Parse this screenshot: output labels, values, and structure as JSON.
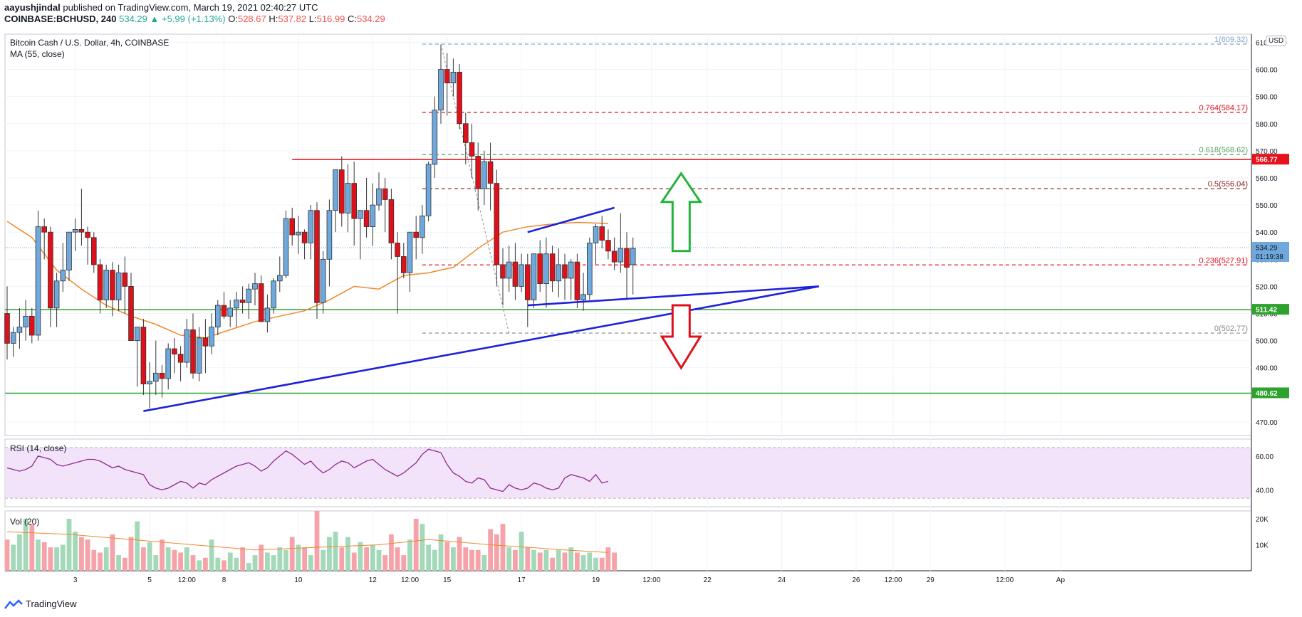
{
  "header": {
    "author": "aayushjindal",
    "published": "published on TradingView.com, March 19, 2021 02:40:27 UTC",
    "symbol_line": "COINBASE:BCHUSD, 240",
    "last": "534.29",
    "change": "▲ +5.99 (+1.13%)",
    "o_label": "O:",
    "o": "528.67",
    "h_label": "H:",
    "h": "537.82",
    "l_label": "L:",
    "l": "516.99",
    "c_label": "C:",
    "c": "534.29"
  },
  "legend": {
    "title": "Bitcoin Cash / U.S. Dollar, 4h, COINBASE",
    "ma": "MA (55, close)",
    "rsi": "RSI (14, close)",
    "vol": "Vol (20)"
  },
  "currency_badge": "USD",
  "footer": {
    "brand": "TradingView",
    "logo_icon": "tradingview-logo-icon"
  },
  "colors": {
    "up": "#6fa8dc",
    "down": "#e0101a",
    "ma": "#f0892c",
    "trendline": "#1e21d8",
    "support": "#2da22d",
    "resistance": "#e8101a",
    "rsi_line": "#8e2c8e",
    "rsi_bg": "#f3e3fa",
    "vol_up": "#a3d9b8",
    "vol_down": "#f5a3a9",
    "vol_ma": "#f0892c"
  },
  "chart_data": {
    "type": "candlestick",
    "title": "Bitcoin Cash / U.S. Dollar, 4h, COINBASE",
    "ylim": [
      465,
      613
    ],
    "price_axis": {
      "ticks": [
        470,
        480,
        490,
        500,
        510,
        520,
        530,
        540,
        550,
        560,
        570,
        580,
        590,
        600,
        610
      ],
      "tick_labels": [
        "470.00",
        "480.00",
        "490.00",
        "500.00",
        "510.00",
        "520.00",
        "530.00",
        "540.00",
        "550.00",
        "560.00",
        "570.00",
        "580.00",
        "590.00",
        "600.00",
        "610.00"
      ]
    },
    "time_axis": {
      "labels": [
        "3",
        "5",
        "12:00",
        "8",
        "10",
        "12",
        "12:00",
        "15",
        "17",
        "19",
        "12:00",
        "22",
        "24",
        "26",
        "12:00",
        "29",
        "12:00",
        "Ap"
      ],
      "label_index": [
        11,
        23,
        29,
        35,
        47,
        59,
        65,
        71,
        83,
        95,
        104,
        113,
        125,
        137,
        143,
        149,
        161,
        170
      ]
    },
    "candles_ohlc": [
      [
        510,
        520,
        493,
        499
      ],
      [
        499,
        505,
        494,
        503
      ],
      [
        503,
        512,
        497,
        505
      ],
      [
        505,
        515,
        500,
        509
      ],
      [
        509,
        512,
        499,
        502
      ],
      [
        502,
        548,
        500,
        542
      ],
      [
        542,
        545,
        530,
        540
      ],
      [
        540,
        542,
        505,
        512
      ],
      [
        512,
        525,
        505,
        522
      ],
      [
        522,
        536,
        518,
        526
      ],
      [
        526,
        540,
        522,
        540
      ],
      [
        540,
        545,
        533,
        541
      ],
      [
        541,
        556,
        535,
        540
      ],
      [
        540,
        542,
        528,
        538
      ],
      [
        538,
        540,
        525,
        528
      ],
      [
        528,
        530,
        510,
        515
      ],
      [
        515,
        528,
        512,
        526
      ],
      [
        526,
        529,
        509,
        515
      ],
      [
        515,
        528,
        511,
        525
      ],
      [
        525,
        531,
        510,
        520
      ],
      [
        520,
        525,
        505,
        500
      ],
      [
        500,
        503,
        483,
        505
      ],
      [
        505,
        508,
        480,
        484
      ],
      [
        484,
        492,
        475,
        485
      ],
      [
        485,
        500,
        480,
        488
      ],
      [
        488,
        491,
        479,
        486
      ],
      [
        486,
        499,
        482,
        497
      ],
      [
        497,
        501,
        488,
        495
      ],
      [
        495,
        498,
        485,
        492
      ],
      [
        492,
        508,
        490,
        504
      ],
      [
        504,
        510,
        486,
        488
      ],
      [
        488,
        505,
        485,
        501
      ],
      [
        501,
        508,
        488,
        498
      ],
      [
        498,
        510,
        495,
        505
      ],
      [
        505,
        515,
        502,
        513
      ],
      [
        513,
        518,
        508,
        509
      ],
      [
        509,
        515,
        505,
        512
      ],
      [
        512,
        518,
        505,
        515
      ],
      [
        515,
        520,
        510,
        514
      ],
      [
        514,
        521,
        508,
        519
      ],
      [
        519,
        525,
        513,
        521
      ],
      [
        521,
        524,
        510,
        507
      ],
      [
        507,
        517,
        503,
        512
      ],
      [
        512,
        523,
        510,
        522
      ],
      [
        522,
        531,
        518,
        524
      ],
      [
        524,
        548,
        523,
        545
      ],
      [
        545,
        549,
        535,
        539
      ],
      [
        539,
        546,
        532,
        540
      ],
      [
        540,
        541,
        530,
        536
      ],
      [
        536,
        550,
        530,
        548
      ],
      [
        548,
        551,
        508,
        514
      ],
      [
        514,
        533,
        510,
        530
      ],
      [
        530,
        552,
        520,
        548
      ],
      [
        548,
        558,
        540,
        563
      ],
      [
        563,
        568,
        542,
        547
      ],
      [
        547,
        565,
        540,
        558
      ],
      [
        558,
        566,
        535,
        545
      ],
      [
        545,
        548,
        530,
        548
      ],
      [
        548,
        560,
        538,
        542
      ],
      [
        542,
        558,
        535,
        550
      ],
      [
        550,
        562,
        548,
        556
      ],
      [
        556,
        560,
        540,
        552
      ],
      [
        552,
        556,
        530,
        536
      ],
      [
        536,
        540,
        510,
        531
      ],
      [
        531,
        536,
        523,
        525
      ],
      [
        525,
        540,
        518,
        540
      ],
      [
        540,
        546,
        530,
        538
      ],
      [
        538,
        550,
        532,
        546
      ],
      [
        546,
        566,
        544,
        565
      ],
      [
        565,
        590,
        560,
        585
      ],
      [
        585,
        609,
        580,
        600
      ],
      [
        600,
        606,
        583,
        595
      ],
      [
        595,
        604,
        590,
        599
      ],
      [
        599,
        602,
        578,
        580
      ],
      [
        580,
        584,
        565,
        573
      ],
      [
        573,
        580,
        560,
        568
      ],
      [
        568,
        573,
        548,
        556
      ],
      [
        556,
        570,
        550,
        566
      ],
      [
        566,
        573,
        548,
        558
      ],
      [
        558,
        563,
        520,
        528
      ],
      [
        528,
        534,
        513,
        523
      ],
      [
        523,
        535,
        518,
        529
      ],
      [
        529,
        536,
        515,
        520
      ],
      [
        520,
        532,
        518,
        528
      ],
      [
        528,
        532,
        505,
        515
      ],
      [
        515,
        530,
        512,
        532
      ],
      [
        532,
        537,
        518,
        521
      ],
      [
        521,
        538,
        512,
        532
      ],
      [
        532,
        535,
        518,
        522
      ],
      [
        522,
        534,
        516,
        528
      ],
      [
        528,
        532,
        515,
        523
      ],
      [
        523,
        530,
        515,
        529
      ],
      [
        529,
        532,
        512,
        515
      ],
      [
        515,
        525,
        511,
        517
      ],
      [
        517,
        538,
        515,
        536
      ],
      [
        536,
        543,
        528,
        542
      ],
      [
        542,
        546,
        534,
        537
      ],
      [
        537,
        541,
        530,
        533
      ],
      [
        533,
        538,
        526,
        529
      ],
      [
        529,
        547,
        525,
        534
      ],
      [
        534,
        540,
        515,
        527
      ],
      [
        528,
        538,
        517,
        534
      ]
    ],
    "ma55_points": [
      [
        0,
        544
      ],
      [
        4,
        538
      ],
      [
        8,
        526
      ],
      [
        12,
        519
      ],
      [
        16,
        513
      ],
      [
        20,
        509
      ],
      [
        24,
        506
      ],
      [
        28,
        502
      ],
      [
        32,
        501
      ],
      [
        36,
        504
      ],
      [
        40,
        507
      ],
      [
        44,
        509
      ],
      [
        48,
        511
      ],
      [
        52,
        515
      ],
      [
        56,
        520
      ],
      [
        60,
        519
      ],
      [
        64,
        524
      ],
      [
        68,
        525
      ],
      [
        72,
        527
      ],
      [
        76,
        534
      ],
      [
        80,
        540
      ],
      [
        84,
        542
      ],
      [
        88,
        543
      ],
      [
        92,
        543.6
      ],
      [
        97,
        543.2
      ]
    ],
    "ma_title": "MA (55, close)",
    "horizontal_lines": [
      {
        "label": "566.77",
        "value": 566.77,
        "color": "#e8101a"
      },
      {
        "label": "511.42",
        "value": 511.42,
        "color": "#2da22d"
      },
      {
        "label": "480.62",
        "value": 480.62,
        "color": "#2da22d"
      }
    ],
    "last_price": {
      "value": 534.29,
      "label": "534.29",
      "countdown": "01:19:38"
    },
    "fib_levels": [
      {
        "ratio": "1",
        "value": 609.32,
        "text": "1(609.32)"
      },
      {
        "ratio": "0.764",
        "value": 584.17,
        "text": "0.764(584.17)"
      },
      {
        "ratio": "0.618",
        "value": 568.62,
        "text": "0.618(568.62)"
      },
      {
        "ratio": "0.5",
        "value": 556.04,
        "text": "0.5(556.04)"
      },
      {
        "ratio": "0.236",
        "value": 527.91,
        "text": "0.236(527.91)"
      },
      {
        "ratio": "0",
        "value": 502.77,
        "text": "0(502.77)"
      }
    ],
    "trendlines": [
      {
        "from": [
          22,
          474
        ],
        "to": [
          131,
          520
        ]
      },
      {
        "from": [
          84,
          540
        ],
        "to": [
          98,
          549
        ]
      },
      {
        "from": [
          84,
          513
        ],
        "to": [
          131,
          520
        ]
      }
    ],
    "arrows": [
      {
        "direction": "up",
        "at_index": 109,
        "value": 548
      },
      {
        "direction": "down",
        "at_index": 109,
        "value": 502
      }
    ],
    "rsi": {
      "title": "RSI (14, close)",
      "ylim": [
        30,
        70
      ],
      "ticks": [
        40,
        60
      ],
      "tick_labels": [
        "40.00",
        "60.00"
      ],
      "bands": [
        35,
        65
      ],
      "values": [
        53,
        52,
        51,
        52,
        54,
        60,
        59,
        58,
        55,
        54,
        55,
        56,
        57,
        58,
        58,
        57,
        55,
        53,
        54,
        52,
        51,
        50,
        49,
        43,
        41,
        40,
        41,
        43,
        45,
        44,
        41,
        44,
        43,
        46,
        48,
        50,
        52,
        54,
        55,
        56,
        54,
        51,
        53,
        57,
        60,
        63,
        61,
        58,
        55,
        57,
        53,
        50,
        52,
        55,
        57,
        56,
        53,
        55,
        57,
        58,
        55,
        52,
        50,
        48,
        50,
        53,
        56,
        61,
        64,
        63,
        62,
        55,
        50,
        48,
        45,
        44,
        47,
        46,
        41,
        40,
        39,
        43,
        41,
        40,
        41,
        44,
        43,
        41,
        40,
        41,
        47,
        49,
        48,
        47,
        45,
        49,
        44,
        45
      ]
    },
    "volume": {
      "title": "Vol (20)",
      "ylim": [
        0,
        23000
      ],
      "ticks": [
        10000,
        20000
      ],
      "tick_labels": [
        "10K",
        "20K"
      ],
      "values": [
        12,
        10,
        14,
        20,
        18,
        12,
        11,
        9,
        9,
        10,
        20,
        15,
        13,
        12,
        8,
        7,
        9,
        14,
        6,
        5,
        13,
        19,
        9,
        11,
        6,
        12,
        9,
        8,
        7,
        9,
        6,
        4,
        5,
        12,
        5,
        4,
        7,
        5,
        9,
        3,
        6,
        10,
        7,
        6,
        9,
        8,
        13,
        10,
        9,
        6,
        23,
        8,
        13,
        15,
        9,
        13,
        7,
        11,
        9,
        10,
        8,
        6,
        14,
        9,
        6,
        12,
        20,
        18,
        10,
        8,
        14,
        11,
        9,
        13,
        9,
        8,
        8,
        6,
        16,
        14,
        18,
        9,
        8,
        15,
        9,
        8,
        7,
        8,
        5,
        8,
        7,
        9,
        7,
        6,
        7,
        5,
        5,
        9,
        7
      ],
      "ma_points": [
        [
          0,
          15
        ],
        [
          10,
          14
        ],
        [
          20,
          12
        ],
        [
          30,
          10
        ],
        [
          40,
          8
        ],
        [
          50,
          9
        ],
        [
          60,
          10
        ],
        [
          68,
          12
        ],
        [
          78,
          10
        ],
        [
          90,
          8
        ],
        [
          97,
          7
        ]
      ]
    }
  }
}
